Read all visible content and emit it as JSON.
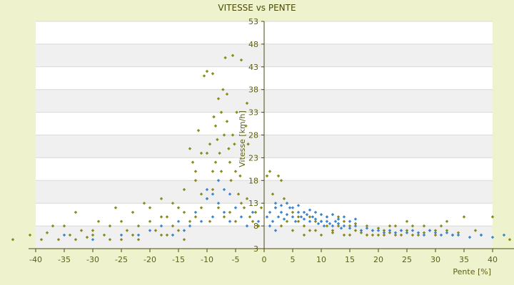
{
  "chart_data": {
    "type": "scatter",
    "title": "VITESSE vs PENTE",
    "xlabel": "Pente [%]",
    "ylabel": "Vitesse [km/h]",
    "xlim": [
      -40,
      40
    ],
    "ylim": [
      3,
      53
    ],
    "x_ticks": [
      "-40",
      "-35",
      "-30",
      "-25",
      "-20",
      "-15",
      "-10",
      "-5",
      "0",
      "5",
      "10",
      "15",
      "20",
      "25",
      "30",
      "35",
      "40"
    ],
    "y_ticks": [
      "3",
      "8",
      "13",
      "18",
      "23",
      "28",
      "33",
      "38",
      "43",
      "48",
      "53"
    ],
    "grid": true,
    "legend": "none",
    "colors": {
      "background": "#EEF3CD",
      "plot_band_a": "#FFFFFF",
      "plot_band_b": "#F0F0F0",
      "gridline": "#D9D9D9",
      "axis": "#4A4A0A",
      "series_olive": "#8A8A1A",
      "series_blue": "#3A86D0"
    },
    "series": [
      {
        "color": "#8A8A1A",
        "points": [
          [
            -44,
            5
          ],
          [
            -41,
            6
          ],
          [
            -39,
            5
          ],
          [
            -38,
            6.5
          ],
          [
            -36,
            5
          ],
          [
            -35,
            8
          ],
          [
            -34,
            6
          ],
          [
            -33,
            11
          ],
          [
            -32,
            7
          ],
          [
            -31,
            5.5
          ],
          [
            -30,
            7
          ],
          [
            -29,
            9
          ],
          [
            -28,
            6
          ],
          [
            -27,
            8
          ],
          [
            -26,
            12
          ],
          [
            -25,
            9
          ],
          [
            -24,
            7
          ],
          [
            -23,
            11
          ],
          [
            -22,
            8
          ],
          [
            -21,
            13
          ],
          [
            -20,
            9
          ],
          [
            -19,
            7
          ],
          [
            -18,
            14
          ],
          [
            -17,
            10
          ],
          [
            -16,
            8
          ],
          [
            -15,
            12
          ],
          [
            -14,
            16
          ],
          [
            -13,
            25
          ],
          [
            -12.5,
            22
          ],
          [
            -12,
            18
          ],
          [
            -11.5,
            29
          ],
          [
            -11,
            24
          ],
          [
            -10.5,
            41
          ],
          [
            -10,
            42
          ],
          [
            -9.5,
            26
          ],
          [
            -9,
            41.5
          ],
          [
            -8.8,
            32
          ],
          [
            -8.5,
            30
          ],
          [
            -8.2,
            27
          ],
          [
            -8,
            36
          ],
          [
            -7.8,
            24
          ],
          [
            -7.5,
            20
          ],
          [
            -7.2,
            38
          ],
          [
            -7,
            28
          ],
          [
            -6.8,
            45
          ],
          [
            -6.5,
            37
          ],
          [
            -6.2,
            25
          ],
          [
            -6,
            22
          ],
          [
            -5.8,
            18
          ],
          [
            -5.5,
            45.5
          ],
          [
            -5.2,
            26
          ],
          [
            -5,
            20
          ],
          [
            -4.8,
            33
          ],
          [
            -4.5,
            15
          ],
          [
            -4.2,
            19
          ],
          [
            -4,
            44.5
          ],
          [
            -3.5,
            12
          ],
          [
            -3,
            14
          ],
          [
            -2.5,
            10
          ],
          [
            -2,
            9
          ],
          [
            -1.5,
            11
          ],
          [
            -1,
            8
          ],
          [
            -0.5,
            12
          ],
          [
            -10,
            14
          ],
          [
            -9,
            16
          ],
          [
            -8,
            12
          ],
          [
            -7,
            10
          ],
          [
            -6,
            11
          ],
          [
            -5,
            9
          ],
          [
            -4,
            13
          ],
          [
            -12,
            10
          ],
          [
            -13,
            9
          ],
          [
            -14,
            11
          ],
          [
            -11,
            12
          ],
          [
            -15,
            7
          ],
          [
            -16,
            13
          ],
          [
            -17,
            6
          ],
          [
            -18,
            10
          ],
          [
            -9.5,
            9
          ],
          [
            -8.5,
            22
          ],
          [
            -7.5,
            33
          ],
          [
            -6.5,
            31
          ],
          [
            -5.5,
            28
          ],
          [
            -9,
            20
          ],
          [
            -10,
            24
          ],
          [
            -3,
            35
          ],
          [
            -2.8,
            26
          ],
          [
            -3.2,
            30
          ],
          [
            -11,
            15
          ],
          [
            -12,
            20
          ],
          [
            0.5,
            19
          ],
          [
            1,
            20
          ],
          [
            1.5,
            15
          ],
          [
            2,
            12
          ],
          [
            2.5,
            19
          ],
          [
            3,
            18
          ],
          [
            3.5,
            14
          ],
          [
            4,
            13
          ],
          [
            5,
            11
          ],
          [
            6,
            9
          ],
          [
            7,
            8
          ],
          [
            8,
            10
          ],
          [
            9,
            7
          ],
          [
            10,
            9
          ],
          [
            11,
            8
          ],
          [
            12,
            7
          ],
          [
            13,
            10
          ],
          [
            14,
            6
          ],
          [
            15,
            8
          ],
          [
            16,
            7
          ],
          [
            17,
            6.5
          ],
          [
            18,
            6
          ],
          [
            19,
            7
          ],
          [
            20,
            6
          ],
          [
            21,
            7
          ],
          [
            22,
            6.5
          ],
          [
            23,
            8
          ],
          [
            24,
            6
          ],
          [
            25,
            7
          ],
          [
            26,
            8
          ],
          [
            27,
            6
          ],
          [
            28,
            6.5
          ],
          [
            29,
            7
          ],
          [
            30,
            6
          ],
          [
            31,
            8
          ],
          [
            32,
            7
          ],
          [
            33,
            6
          ],
          [
            34,
            6.5
          ],
          [
            35,
            10
          ],
          [
            37,
            7
          ],
          [
            38,
            6
          ],
          [
            40,
            10
          ],
          [
            43,
            5
          ],
          [
            3,
            8
          ],
          [
            4,
            9
          ],
          [
            5,
            7
          ],
          [
            6,
            10
          ],
          [
            7,
            6
          ],
          [
            8,
            7
          ],
          [
            9,
            9
          ],
          [
            10,
            6
          ],
          [
            11,
            10
          ],
          [
            12,
            6.5
          ],
          [
            13,
            8
          ],
          [
            14,
            9
          ],
          [
            15,
            6
          ],
          [
            16,
            8.5
          ],
          [
            17,
            7
          ],
          [
            18,
            8
          ],
          [
            19,
            6
          ],
          [
            20,
            7.5
          ],
          [
            21,
            6
          ],
          [
            22,
            8
          ],
          [
            23,
            6
          ],
          [
            24,
            7
          ],
          [
            25,
            9
          ],
          [
            26,
            6
          ],
          [
            28,
            8
          ],
          [
            30,
            7
          ],
          [
            32,
            9
          ],
          [
            -25,
            5
          ],
          [
            -22,
            5
          ],
          [
            -18,
            6
          ],
          [
            -14,
            5
          ],
          [
            -20,
            12
          ],
          [
            -23,
            6
          ],
          [
            -27,
            5
          ],
          [
            -30,
            6
          ],
          [
            -33,
            5
          ],
          [
            -37,
            8
          ]
        ]
      },
      {
        "color": "#3A86D0",
        "points": [
          [
            0.5,
            10
          ],
          [
            1,
            11
          ],
          [
            1.5,
            9
          ],
          [
            2,
            12
          ],
          [
            2.5,
            10
          ],
          [
            3,
            11
          ],
          [
            3.5,
            9.5
          ],
          [
            4,
            10.5
          ],
          [
            4.5,
            12
          ],
          [
            5,
            10
          ],
          [
            5.5,
            9
          ],
          [
            6,
            11
          ],
          [
            6.5,
            10
          ],
          [
            7,
            9.5
          ],
          [
            7.5,
            10.5
          ],
          [
            8,
            9
          ],
          [
            8.5,
            10
          ],
          [
            9,
            9.5
          ],
          [
            9.5,
            8.5
          ],
          [
            10,
            9
          ],
          [
            10.5,
            8
          ],
          [
            11,
            9
          ],
          [
            11.5,
            8.5
          ],
          [
            12,
            8
          ],
          [
            12.5,
            9
          ],
          [
            13,
            8.5
          ],
          [
            13.5,
            7.5
          ],
          [
            14,
            8
          ],
          [
            15,
            7.5
          ],
          [
            16,
            8
          ],
          [
            17,
            7
          ],
          [
            18,
            7.5
          ],
          [
            19,
            7
          ],
          [
            20,
            7
          ],
          [
            21,
            6.5
          ],
          [
            22,
            7
          ],
          [
            23,
            6.5
          ],
          [
            24,
            7
          ],
          [
            25,
            6.5
          ],
          [
            26,
            7
          ],
          [
            27,
            6.5
          ],
          [
            28,
            6
          ],
          [
            29,
            7
          ],
          [
            30,
            6.5
          ],
          [
            31,
            6
          ],
          [
            32,
            6.5
          ],
          [
            33,
            6
          ],
          [
            34,
            6
          ],
          [
            36,
            5.5
          ],
          [
            38,
            6
          ],
          [
            40,
            5.5
          ],
          [
            42,
            6
          ],
          [
            44,
            5.5
          ],
          [
            2,
            13
          ],
          [
            3,
            12.5
          ],
          [
            4,
            13
          ],
          [
            5,
            12
          ],
          [
            6,
            12.5
          ],
          [
            7,
            11
          ],
          [
            8,
            11.5
          ],
          [
            9,
            11
          ],
          [
            10,
            10.5
          ],
          [
            11,
            10
          ],
          [
            12,
            10.5
          ],
          [
            13,
            9.5
          ],
          [
            14,
            10
          ],
          [
            15,
            9
          ],
          [
            16,
            9.5
          ],
          [
            1,
            8
          ],
          [
            2,
            7
          ],
          [
            -1,
            9
          ],
          [
            -2,
            11
          ],
          [
            -3,
            8
          ],
          [
            -4,
            10
          ],
          [
            -5,
            12
          ],
          [
            -6,
            9
          ],
          [
            -7,
            11
          ],
          [
            -8,
            13
          ],
          [
            -9,
            10
          ],
          [
            -10,
            14
          ],
          [
            -11,
            9
          ],
          [
            -12,
            11
          ],
          [
            -13,
            8
          ],
          [
            -14,
            7
          ],
          [
            -15,
            9
          ],
          [
            -16,
            6
          ],
          [
            -18,
            8
          ],
          [
            -20,
            7
          ],
          [
            -22,
            6
          ],
          [
            -30,
            5
          ],
          [
            -35,
            6
          ],
          [
            -25,
            6
          ],
          [
            -7,
            16
          ],
          [
            -8,
            18
          ],
          [
            -6,
            15
          ],
          [
            -9,
            15
          ],
          [
            -10,
            16
          ]
        ]
      }
    ]
  }
}
